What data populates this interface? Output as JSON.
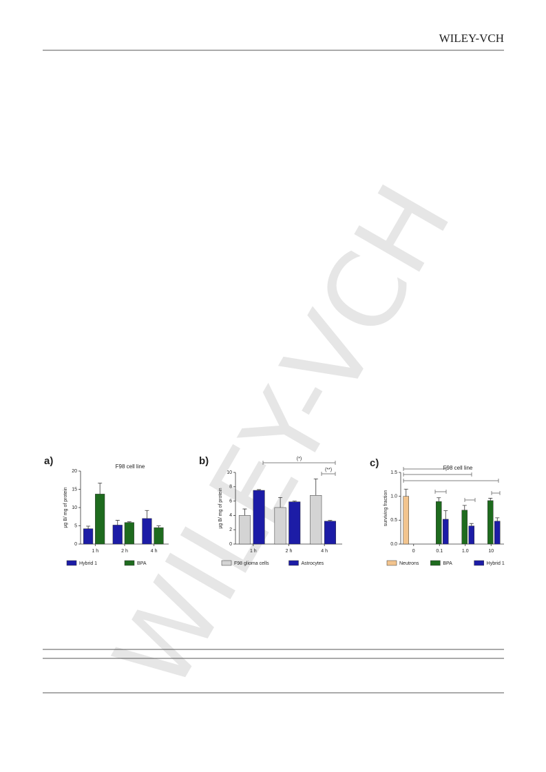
{
  "header": {
    "publisher": "WILEY-VCH"
  },
  "watermark": "WILEY-VCH",
  "chart_data": [
    {
      "type": "bar",
      "panel_label": "a)",
      "title": "F98 cell line",
      "y_label": "µg B/ mg of protein",
      "categories": [
        "1 h",
        "2 h",
        "4 h"
      ],
      "series": [
        {
          "name": "Hybrid 1",
          "color": "#1c1ca6",
          "values": [
            4.2,
            5.2,
            7.0
          ],
          "errors": [
            0.7,
            1.3,
            2.2
          ]
        },
        {
          "name": "BPA",
          "color": "#1e6b1e",
          "values": [
            13.7,
            5.9,
            4.5
          ],
          "errors": [
            3.0,
            0.2,
            0.5
          ]
        }
      ],
      "ylim": [
        0,
        20
      ],
      "yticks": [
        0,
        5,
        10,
        15,
        20
      ]
    },
    {
      "type": "bar",
      "panel_label": "b)",
      "y_label": "µg B/ mg of protein",
      "categories": [
        "1 h",
        "2 h",
        "4 h"
      ],
      "series": [
        {
          "name": "F98 glioma cells",
          "color": "#d4d4d4",
          "values": [
            4.0,
            5.1,
            6.8
          ],
          "errors": [
            0.9,
            1.4,
            2.3
          ]
        },
        {
          "name": "Astrocytes",
          "color": "#1c1ca6",
          "values": [
            7.5,
            5.9,
            3.2
          ],
          "errors": [
            0.1,
            0.1,
            0.1
          ]
        }
      ],
      "annotations": [
        "(*)",
        "(**)"
      ],
      "ylim": [
        0,
        10
      ],
      "yticks": [
        0,
        2,
        4,
        6,
        8,
        10
      ]
    },
    {
      "type": "bar",
      "panel_label": "c)",
      "title": "F98 cell line",
      "y_label": "surviving fraction",
      "categories": [
        "0",
        "0.1",
        "1.0",
        "10"
      ],
      "series": [
        {
          "name": "Neutrons",
          "color": "#f2c48e",
          "values": [
            1.0,
            null,
            null,
            null
          ],
          "errors": [
            0.15,
            null,
            null,
            null
          ]
        },
        {
          "name": "BPA",
          "color": "#1e6b1e",
          "values": [
            null,
            0.89,
            0.71,
            0.91
          ],
          "errors": [
            null,
            0.08,
            0.1,
            0.05
          ]
        },
        {
          "name": "Hybrid 1",
          "color": "#1c1ca6",
          "values": [
            null,
            0.52,
            0.38,
            0.48
          ],
          "errors": [
            null,
            0.18,
            0.05,
            0.07
          ]
        }
      ],
      "ylim": [
        0,
        1.5
      ],
      "yticks": [
        {
          "value": 0,
          "label": "0.0"
        },
        0.5,
        {
          "value": 1,
          "label": "1.0"
        },
        1.5
      ]
    }
  ]
}
